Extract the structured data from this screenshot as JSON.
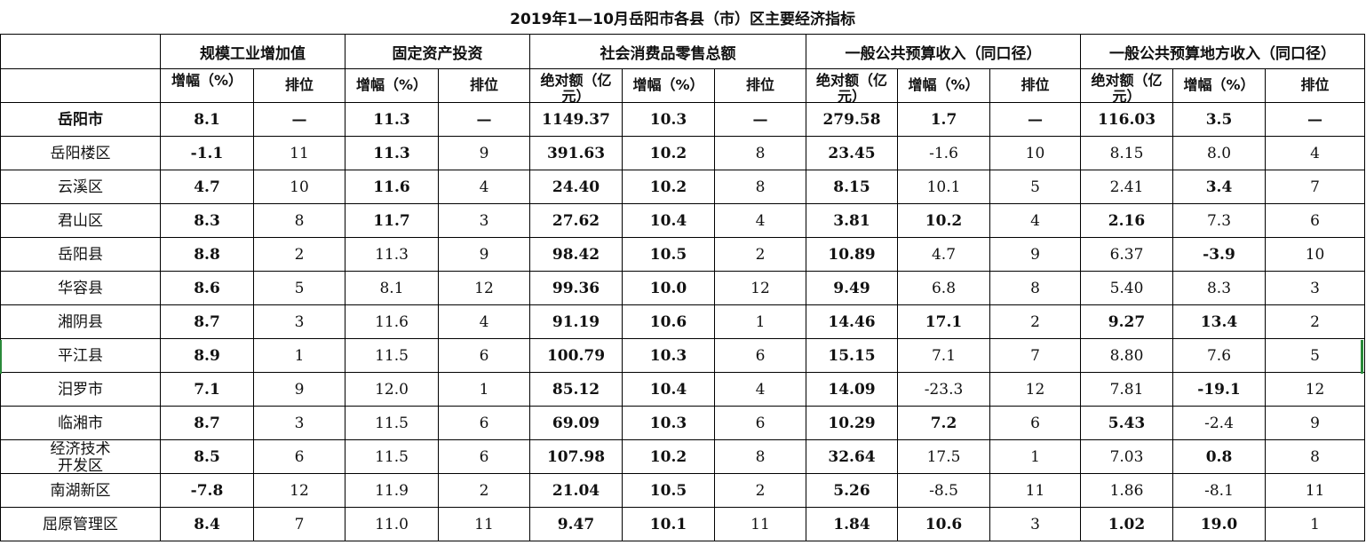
{
  "title": "2019年1—10月岳阳市各县（市）区主要经济指标",
  "groups": [
    "规模工业增加值",
    "固定资产投资",
    "社会消费品零售总额",
    "一般公共预算收入（同口径）",
    "一般公共预算地方收入（同口径）"
  ],
  "subheaders": [
    "增幅（%）",
    "排位",
    "增幅（%）",
    "排位",
    "绝对额（亿元）",
    "增幅（%）",
    "排位",
    "绝对额（亿元）",
    "增幅（%）",
    "排位",
    "绝对额（亿元）",
    "增幅（%）",
    "排位"
  ],
  "rows": [
    {
      "name": "岳阳市",
      "cells": [
        "8.1",
        "—",
        "11.3",
        "—",
        "1149.37",
        "10.3",
        "—",
        "279.58",
        "1.7",
        "—",
        "116.03",
        "3.5",
        "—"
      ],
      "bold": [
        1,
        1,
        1,
        1,
        1,
        1,
        1,
        1,
        1,
        1,
        1,
        1,
        1
      ]
    },
    {
      "name": "岳阳楼区",
      "cells": [
        "-1.1",
        "11",
        "11.3",
        "9",
        "391.63",
        "10.2",
        "8",
        "23.45",
        "-1.6",
        "10",
        "8.15",
        "8.0",
        "4"
      ],
      "bold": [
        1,
        0,
        1,
        0,
        1,
        1,
        0,
        1,
        0,
        0,
        0,
        0,
        0
      ]
    },
    {
      "name": "云溪区",
      "cells": [
        "4.7",
        "10",
        "11.6",
        "4",
        "24.40",
        "10.2",
        "8",
        "8.15",
        "10.1",
        "5",
        "2.41",
        "3.4",
        "7"
      ],
      "bold": [
        1,
        0,
        1,
        0,
        1,
        1,
        0,
        1,
        0,
        0,
        0,
        1,
        0
      ]
    },
    {
      "name": "君山区",
      "cells": [
        "8.3",
        "8",
        "11.7",
        "3",
        "27.62",
        "10.4",
        "4",
        "3.81",
        "10.2",
        "4",
        "2.16",
        "7.3",
        "6"
      ],
      "bold": [
        1,
        0,
        1,
        0,
        1,
        1,
        0,
        1,
        1,
        0,
        1,
        0,
        0
      ]
    },
    {
      "name": "岳阳县",
      "cells": [
        "8.8",
        "2",
        "11.3",
        "9",
        "98.42",
        "10.5",
        "2",
        "10.89",
        "4.7",
        "9",
        "6.37",
        "-3.9",
        "10"
      ],
      "bold": [
        1,
        0,
        0,
        0,
        1,
        1,
        0,
        1,
        0,
        0,
        0,
        1,
        0
      ]
    },
    {
      "name": "华容县",
      "cells": [
        "8.6",
        "5",
        "8.1",
        "12",
        "99.36",
        "10.0",
        "12",
        "9.49",
        "6.8",
        "8",
        "5.40",
        "8.3",
        "3"
      ],
      "bold": [
        1,
        0,
        0,
        0,
        1,
        1,
        0,
        1,
        0,
        0,
        0,
        0,
        0
      ]
    },
    {
      "name": "湘阴县",
      "cells": [
        "8.7",
        "3",
        "11.6",
        "4",
        "91.19",
        "10.6",
        "1",
        "14.46",
        "17.1",
        "2",
        "9.27",
        "13.4",
        "2"
      ],
      "bold": [
        1,
        0,
        0,
        0,
        1,
        1,
        0,
        1,
        1,
        0,
        1,
        1,
        0
      ]
    },
    {
      "name": "平江县",
      "cells": [
        "8.9",
        "1",
        "11.5",
        "6",
        "100.79",
        "10.3",
        "6",
        "15.15",
        "7.1",
        "7",
        "8.80",
        "7.6",
        "5"
      ],
      "bold": [
        1,
        0,
        0,
        0,
        1,
        1,
        0,
        1,
        0,
        0,
        0,
        0,
        0
      ]
    },
    {
      "name": "汨罗市",
      "cells": [
        "7.1",
        "9",
        "12.0",
        "1",
        "85.12",
        "10.4",
        "4",
        "14.09",
        "-23.3",
        "12",
        "7.81",
        "-19.1",
        "12"
      ],
      "bold": [
        1,
        0,
        0,
        0,
        1,
        1,
        0,
        1,
        0,
        0,
        0,
        1,
        0
      ]
    },
    {
      "name": "临湘市",
      "cells": [
        "8.7",
        "3",
        "11.5",
        "6",
        "69.09",
        "10.3",
        "6",
        "10.29",
        "7.2",
        "6",
        "5.43",
        "-2.4",
        "9"
      ],
      "bold": [
        1,
        0,
        0,
        0,
        1,
        1,
        0,
        1,
        1,
        0,
        1,
        0,
        0
      ]
    },
    {
      "name": "经济技术开发区",
      "cells": [
        "8.5",
        "6",
        "11.5",
        "6",
        "107.98",
        "10.2",
        "8",
        "32.64",
        "17.5",
        "1",
        "7.03",
        "0.8",
        "8"
      ],
      "bold": [
        1,
        0,
        0,
        0,
        1,
        1,
        0,
        1,
        0,
        0,
        0,
        1,
        0
      ]
    },
    {
      "name": "南湖新区",
      "cells": [
        "-7.8",
        "12",
        "11.9",
        "2",
        "21.04",
        "10.5",
        "2",
        "5.26",
        "-8.5",
        "11",
        "1.86",
        "-8.1",
        "11"
      ],
      "bold": [
        1,
        0,
        0,
        0,
        1,
        1,
        0,
        1,
        0,
        0,
        0,
        0,
        0
      ]
    },
    {
      "name": "屈原管理区",
      "cells": [
        "8.4",
        "7",
        "11.0",
        "11",
        "9.47",
        "10.1",
        "11",
        "1.84",
        "10.6",
        "3",
        "1.02",
        "19.0",
        "1"
      ],
      "bold": [
        1,
        0,
        0,
        0,
        1,
        1,
        0,
        1,
        1,
        0,
        1,
        1,
        0
      ]
    }
  ]
}
